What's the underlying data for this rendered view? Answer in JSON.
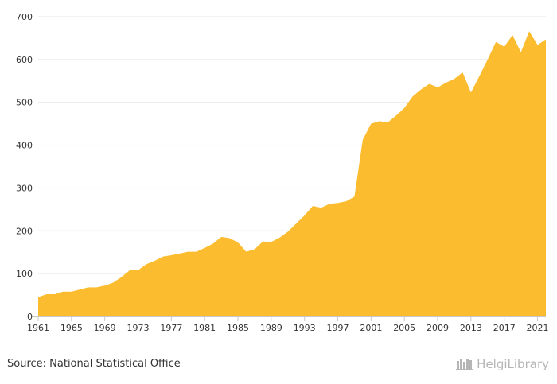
{
  "chart_data": {
    "type": "area",
    "title": "",
    "xlabel": "",
    "ylabel": "",
    "ylim": [
      0,
      700
    ],
    "yticks": [
      0,
      100,
      200,
      300,
      400,
      500,
      600,
      700
    ],
    "xticks": [
      1961,
      1965,
      1969,
      1973,
      1977,
      1981,
      1985,
      1989,
      1993,
      1997,
      2001,
      2005,
      2009,
      2013,
      2017,
      2021
    ],
    "grid": true,
    "legend": "none",
    "fill_color": "#fbbd2f",
    "x": [
      1961,
      1962,
      1963,
      1964,
      1965,
      1966,
      1967,
      1968,
      1969,
      1970,
      1971,
      1972,
      1973,
      1974,
      1975,
      1976,
      1977,
      1978,
      1979,
      1980,
      1981,
      1982,
      1983,
      1984,
      1985,
      1986,
      1987,
      1988,
      1989,
      1990,
      1991,
      1992,
      1993,
      1994,
      1995,
      1996,
      1997,
      1998,
      1999,
      2000,
      2001,
      2002,
      2003,
      2004,
      2005,
      2006,
      2007,
      2008,
      2009,
      2010,
      2011,
      2012,
      2013,
      2014,
      2015,
      2016,
      2017,
      2018,
      2019,
      2020,
      2021,
      2022
    ],
    "series": [
      {
        "values": [
          45,
          52,
          52,
          58,
          58,
          63,
          68,
          68,
          72,
          79,
          92,
          108,
          108,
          122,
          130,
          140,
          143,
          147,
          151,
          151,
          160,
          170,
          186,
          183,
          173,
          151,
          157,
          175,
          174,
          184,
          198,
          217,
          236,
          258,
          254,
          263,
          265,
          269,
          280,
          413,
          450,
          456,
          453,
          469,
          487,
          514,
          530,
          543,
          535,
          546,
          555,
          570,
          523,
          561,
          600,
          641,
          630,
          657,
          617,
          666,
          634,
          647
        ]
      }
    ]
  },
  "footer": {
    "source": "Source: National Statistical Office",
    "logo_text": "HelgiLibrary"
  }
}
